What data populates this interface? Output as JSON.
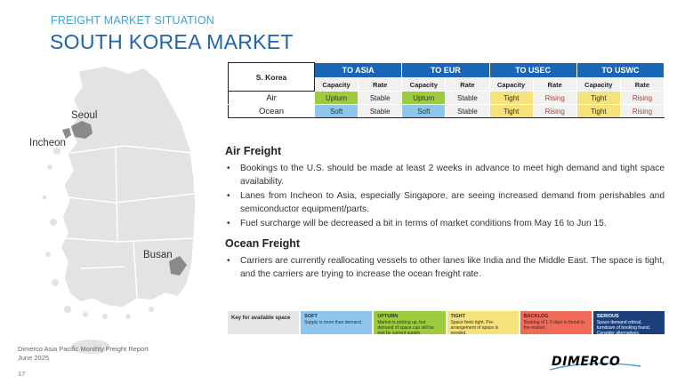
{
  "header": {
    "kicker": "FREIGHT MARKET SITUATION",
    "title": "SOUTH KOREA MARKET"
  },
  "map": {
    "cities": [
      "Seoul",
      "Incheon",
      "Busan"
    ]
  },
  "table": {
    "corner": "S. Korea",
    "destinations": [
      "TO ASIA",
      "TO EUR",
      "TO USEC",
      "TO USWC"
    ],
    "subheaders": [
      "Capacity",
      "Rate"
    ],
    "rows": [
      {
        "mode": "Air",
        "cells": [
          "Upturn",
          "Stable",
          "Upturn",
          "Stable",
          "Tight",
          "Rising",
          "Tight",
          "Rising"
        ]
      },
      {
        "mode": "Ocean",
        "cells": [
          "Soft",
          "Stable",
          "Soft",
          "Stable",
          "Tight",
          "Rising",
          "Tight",
          "Rising"
        ]
      }
    ]
  },
  "air": {
    "heading": "Air Freight",
    "bullets": [
      "Bookings to the U.S. should be made at least 2 weeks in advance to meet high demand and tight space availability.",
      "Lanes from Incheon to Asia, especially Singapore, are seeing increased demand from perishables and semiconductor equipment/parts.",
      "Fuel surcharge will be decreased a bit in terms of market conditions from May 16 to Jun 15."
    ]
  },
  "ocean": {
    "heading": "Ocean Freight",
    "bullets": [
      "Carriers are currently reallocating vessels to other lanes like India and the Middle East. The space is tight, and the carriers are trying to increase the ocean freight rate."
    ]
  },
  "legend": {
    "key": "Key for available space",
    "items": [
      {
        "title": "SOFT",
        "desc": "Supply is more than demand."
      },
      {
        "title": "UPTURN",
        "desc": "Market is picking up, but demand of space can still be met by current supply."
      },
      {
        "title": "TIGHT",
        "desc": "Space feels tight. Pre-arrangement of space is needed."
      },
      {
        "title": "BACKLOG",
        "desc": "Backlog of 1-3 days is found in the market."
      },
      {
        "title": "SERIOUS",
        "desc": "Space demand critical, turndown of booking found. Consider alternatives."
      }
    ]
  },
  "footer": {
    "line1": "Dimerco Asia Pacific Monthly Freight Report",
    "line2": "June 2025",
    "page": "17"
  },
  "logo": {
    "text": "DIMERCO"
  },
  "colors": {
    "title_blue": "#1f64ad",
    "kicker_blue": "#3ea0d8",
    "header_blue": "#1a65b8",
    "upturn": "#9ccc3d",
    "soft": "#8ec6ee",
    "tight": "#f6e27a",
    "backlog": "#ef6b58",
    "serious": "#1a3f7a",
    "rising_text": "#c0392b"
  }
}
